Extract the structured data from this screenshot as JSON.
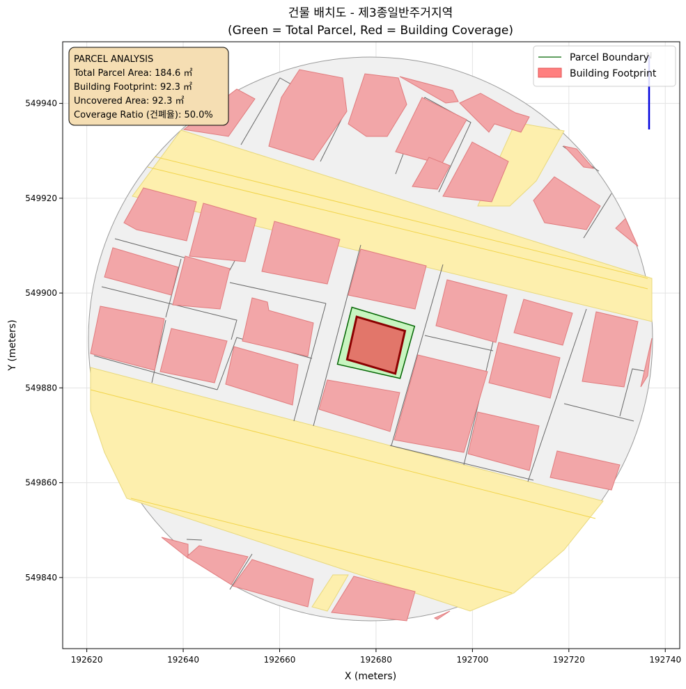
{
  "chart_data": {
    "type": "map",
    "title_line1": "건물 배치도 - 제3종일반주거지역",
    "title_line2": "(Green = Total Parcel, Red = Building Coverage)",
    "xlabel": "X (meters)",
    "ylabel": "Y (meters)",
    "xlim": [
      192615,
      192743
    ],
    "ylim": [
      549825,
      549953
    ],
    "xticks": [
      192620,
      192640,
      192660,
      192680,
      192700,
      192720,
      192740
    ],
    "yticks": [
      549840,
      549860,
      549880,
      549900,
      549920,
      549940
    ],
    "grid": true,
    "legend_position": "top-right",
    "legend": [
      {
        "label": "Parcel Boundary",
        "kind": "line",
        "color": "#006400"
      },
      {
        "label": "Building Footprint",
        "kind": "patch",
        "color": "#ff7f7f"
      }
    ],
    "annotation_box": {
      "lines": [
        "PARCEL ANALYSIS",
        "Total Parcel Area: 184.6 ㎡",
        "Building Footprint: 92.3 ㎡",
        "Uncovered Area: 92.3 ㎡",
        "Coverage Ratio (건폐율): 50.0%"
      ],
      "position": "top-left"
    },
    "north_arrow_label": "N",
    "target_parcel": {
      "area_m2": 184.6,
      "footprint_m2": 92.3,
      "uncovered_m2": 92.3,
      "coverage_ratio_pct": 50.0,
      "boundary": [
        [
          192672,
          549885
        ],
        [
          192675,
          549897
        ],
        [
          192688,
          549893
        ],
        [
          192685,
          549882
        ]
      ],
      "building": [
        [
          192674,
          549886
        ],
        [
          192676,
          549895
        ],
        [
          192686,
          549892
        ],
        [
          192684,
          549883
        ]
      ]
    },
    "colors": {
      "parcel_fill": "#c8f5c0",
      "parcel_edge": "#006400",
      "building_fill": "#e2766a",
      "building_edge": "#8b0000",
      "context_building": "#f2a6a8",
      "road": "#fdefad",
      "lot": "#f0f0f0"
    }
  }
}
